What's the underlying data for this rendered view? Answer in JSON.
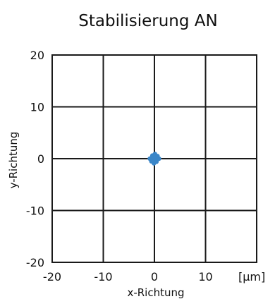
{
  "chart_data": {
    "type": "scatter",
    "title": "Stabilisierung AN",
    "xlabel": "x-Richtung",
    "ylabel": "y-Richtung",
    "unit_label": "[µm]",
    "xlim": [
      -20,
      20
    ],
    "ylim": [
      -20,
      20
    ],
    "x_ticks": [
      -20,
      -10,
      0,
      10
    ],
    "x_tick_labels": [
      "-20",
      "-10",
      "0",
      "10"
    ],
    "y_ticks": [
      20,
      10,
      0,
      -10,
      -20
    ],
    "y_tick_labels": [
      "20",
      "10",
      "0",
      "-10",
      "-20"
    ],
    "grid": true,
    "point_color": "#3a86c8",
    "series": [
      {
        "x": [
          0.0,
          0.3,
          -0.3,
          0.5,
          -0.5,
          0.2,
          -0.2,
          0.7,
          -0.7,
          0.4,
          -0.4,
          0.1,
          -0.1,
          0.6,
          -0.6,
          0.0,
          0.9,
          -0.9,
          0.3,
          -0.3
        ],
        "y": [
          0.0,
          0.4,
          -0.4,
          -0.2,
          0.2,
          0.7,
          -0.7,
          0.1,
          -0.1,
          -0.6,
          0.6,
          0.9,
          -0.9,
          0.5,
          -0.5,
          0.3,
          0.0,
          0.0,
          -0.3,
          0.3
        ]
      }
    ]
  }
}
